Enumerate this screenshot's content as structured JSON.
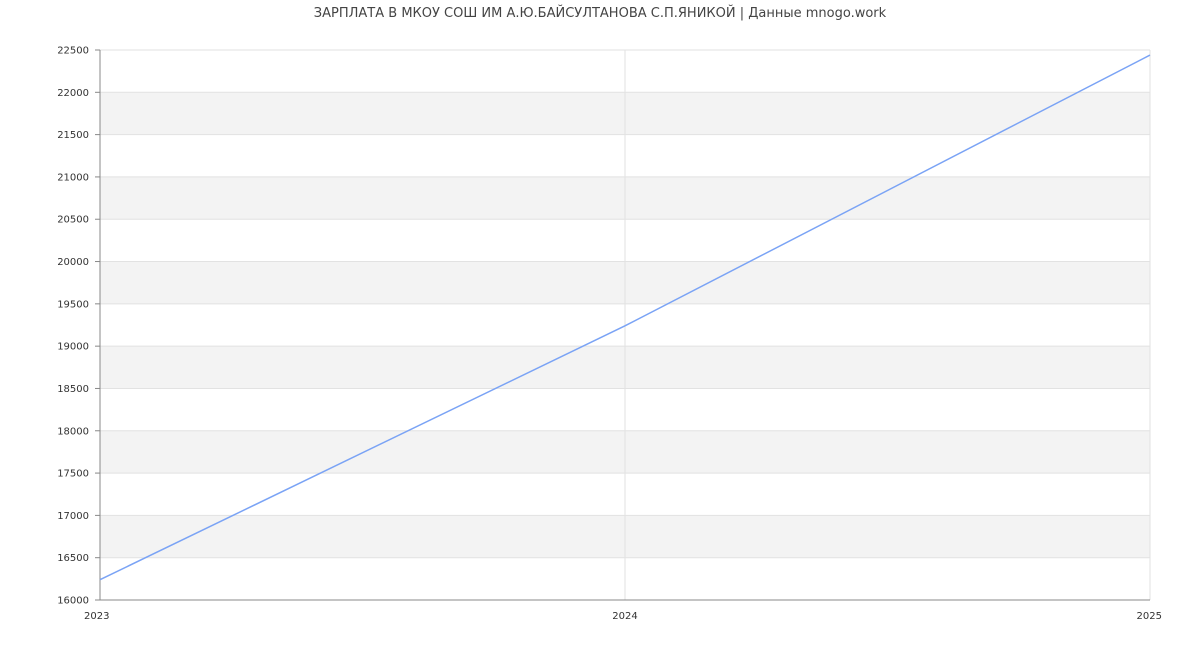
{
  "chart_data": {
    "type": "line",
    "title": "ЗАРПЛАТА В МКОУ СОШ ИМ А.Ю.БАЙСУЛТАНОВА С.П.ЯНИКОЙ | Данные mnogo.work",
    "xlabel": "",
    "ylabel": "",
    "x_ticks": [
      "2023",
      "2024",
      "2025"
    ],
    "xlim": [
      2023,
      2025
    ],
    "ylim": [
      16000,
      22500
    ],
    "y_ticks": [
      16000,
      16500,
      17000,
      17500,
      18000,
      18500,
      19000,
      19500,
      20000,
      20500,
      21000,
      21500,
      22000,
      22500
    ],
    "grid": true,
    "series": [
      {
        "x": [
          2023,
          2024,
          2025
        ],
        "values": [
          16240,
          19240,
          22440
        ],
        "color": "#7aa3f5"
      }
    ]
  }
}
